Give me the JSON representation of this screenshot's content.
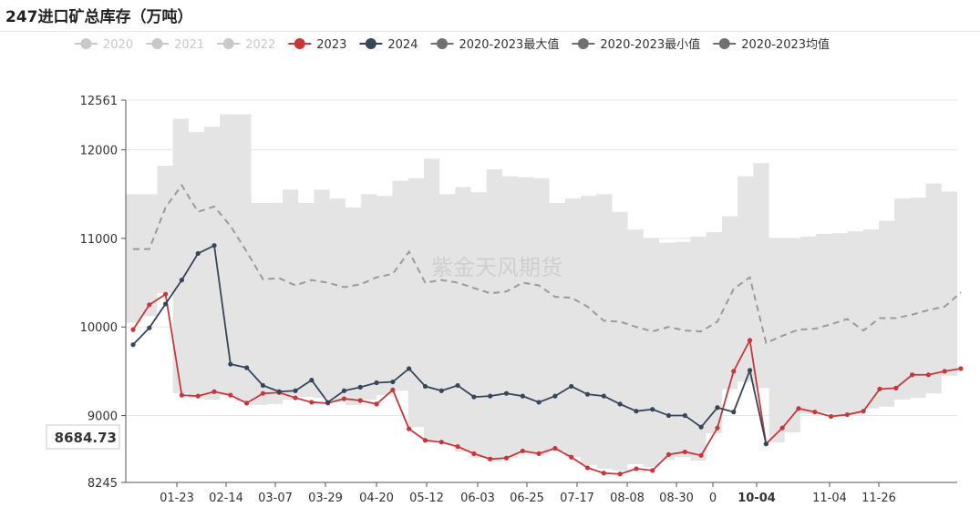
{
  "title": "247进口矿总库存（万吨）",
  "watermark": "紫金天风期货",
  "pointer_label": "8684.73",
  "highlight_x_label": "10-04",
  "colors": {
    "band": "#e4e4e4",
    "series_2023": "#c8363a",
    "series_2024": "#35465a",
    "series_avg": "#9a9a9a",
    "legend_inactive": "#c9c9c9",
    "legend_marker": "#707070"
  },
  "chart_data": {
    "type": "line",
    "ylim": [
      8245,
      12561
    ],
    "yticks": [
      8245,
      9000,
      10000,
      11000,
      12000,
      12561
    ],
    "xtick_labels": [
      "01-23",
      "02-14",
      "03-07",
      "03-29",
      "04-20",
      "05-12",
      "06-03",
      "06-25",
      "07-17",
      "08-08",
      "08-30",
      "0",
      "10-04",
      "11-04",
      "11-26"
    ],
    "legend": [
      {
        "name": "2020",
        "active": false
      },
      {
        "name": "2021",
        "active": false
      },
      {
        "name": "2022",
        "active": false
      },
      {
        "name": "2023",
        "active": true
      },
      {
        "name": "2024",
        "active": true
      },
      {
        "name": "2020-2023最大值",
        "active": true
      },
      {
        "name": "2020-2023最小值",
        "active": true
      },
      {
        "name": "2020-2023均值",
        "active": true
      }
    ],
    "band": {
      "max": [
        11500,
        11500,
        11820,
        12350,
        12200,
        12260,
        12400,
        12400,
        11400,
        11400,
        11550,
        11400,
        11550,
        11450,
        11350,
        11500,
        11480,
        11650,
        11680,
        11900,
        11500,
        11580,
        11520,
        11780,
        11700,
        11690,
        11680,
        11400,
        11450,
        11480,
        11500,
        11300,
        11100,
        11000,
        10950,
        10960,
        11020,
        11070,
        11250,
        11700,
        11850,
        11000,
        11000,
        11020,
        11050,
        11060,
        11080,
        11100,
        11200,
        11450,
        11460,
        11620,
        11530,
        11510
      ],
      "min": [
        10050,
        10120,
        10380,
        9250,
        9200,
        9180,
        9230,
        9160,
        9120,
        9130,
        9180,
        9210,
        9200,
        9150,
        9120,
        9180,
        9230,
        9280,
        8870,
        8720,
        8680,
        8590,
        8520,
        8480,
        8520,
        8580,
        8560,
        8600,
        8530,
        8440,
        8400,
        8380,
        8450,
        8420,
        8500,
        8530,
        8490,
        8800,
        9300,
        9380,
        9310,
        8700,
        8810,
        9020,
        9030,
        8990,
        9010,
        9080,
        9100,
        9180,
        9200,
        9250,
        9450,
        9450
      ]
    },
    "series": [
      {
        "name": "2023",
        "values": [
          9970,
          10250,
          10370,
          9230,
          9220,
          9270,
          9230,
          9140,
          9250,
          9260,
          9200,
          9150,
          9140,
          9190,
          9170,
          9130,
          9290,
          8850,
          8720,
          8700,
          8650,
          8570,
          8510,
          8520,
          8600,
          8570,
          8630,
          8530,
          8410,
          8350,
          8340,
          8400,
          8380,
          8560,
          8590,
          8550,
          8860,
          9500,
          9850,
          8680,
          8860,
          9080,
          9040,
          8990,
          9010,
          9050,
          9300,
          9310,
          9460,
          9460,
          9500,
          9530
        ]
      },
      {
        "name": "2024",
        "values": [
          9800,
          9990,
          10260,
          10530,
          10830,
          10920,
          9580,
          9540,
          9340,
          9270,
          9280,
          9400,
          9150,
          9280,
          9320,
          9370,
          9380,
          9530,
          9330,
          9280,
          9340,
          9210,
          9220,
          9250,
          9220,
          9150,
          9220,
          9330,
          9240,
          9220,
          9130,
          9050,
          9070,
          9000,
          9000,
          8870,
          9090,
          9040,
          9510,
          8680
        ]
      },
      {
        "name": "2020-2023均值",
        "values": [
          10880,
          10880,
          11350,
          11600,
          11300,
          11360,
          11140,
          10850,
          10540,
          10550,
          10470,
          10530,
          10500,
          10450,
          10480,
          10560,
          10600,
          10850,
          10500,
          10530,
          10500,
          10440,
          10380,
          10400,
          10500,
          10470,
          10340,
          10330,
          10230,
          10070,
          10060,
          10000,
          9950,
          10000,
          9960,
          9950,
          10060,
          10430,
          10560,
          9820,
          9900,
          9970,
          9980,
          10030,
          10090,
          9960,
          10100,
          10100,
          10140,
          10190,
          10230,
          10390
        ]
      }
    ]
  }
}
